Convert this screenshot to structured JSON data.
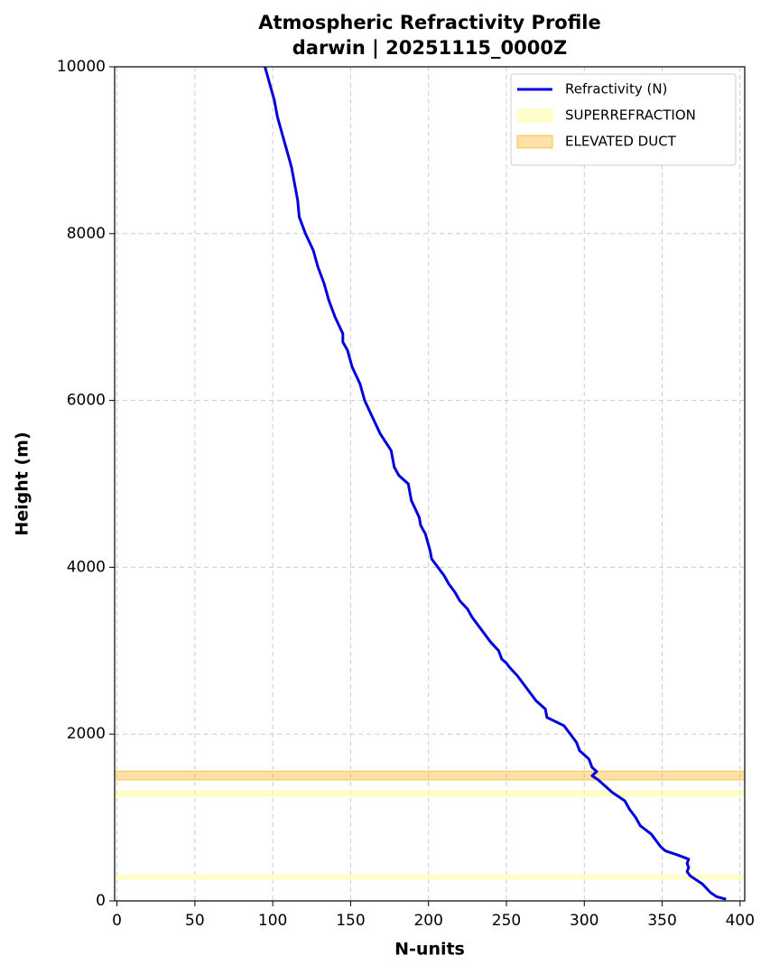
{
  "chart_data": {
    "type": "line",
    "title": "Atmospheric Refractivity Profile",
    "subtitle": "darwin | 20251115_0000Z",
    "x_label": "N-units",
    "y_label": "Height (m)",
    "xlim": [
      -1.5,
      403
    ],
    "ylim": [
      0,
      10000
    ],
    "xticks": [
      0,
      50,
      100,
      150,
      200,
      250,
      300,
      350,
      400
    ],
    "yticks": [
      0,
      2000,
      4000,
      6000,
      8000,
      10000
    ],
    "grid": true,
    "legend": "upper right",
    "series": [
      {
        "name": "Refractivity (N)",
        "color": "#0000dd",
        "x": [
          391,
          385,
          381,
          376,
          372,
          368,
          366,
          367,
          366,
          367,
          360,
          352,
          349,
          347,
          343,
          336,
          333,
          329,
          326,
          318,
          312,
          309,
          305,
          308,
          305,
          303,
          297,
          295,
          291,
          287,
          276,
          275,
          269,
          265,
          261,
          257,
          252,
          250,
          247,
          245,
          240,
          236,
          232,
          228,
          225,
          220,
          217,
          213,
          210,
          206,
          202,
          201,
          198,
          195,
          194,
          189,
          187,
          181,
          178,
          177,
          176,
          169,
          164,
          159,
          156,
          151,
          148,
          145,
          145,
          140,
          136,
          133,
          129,
          126,
          121,
          117,
          116,
          114,
          112,
          109,
          106,
          103,
          101,
          98,
          95
        ],
        "y": [
          20,
          50,
          100,
          200,
          250,
          300,
          350,
          400,
          450,
          500,
          550,
          600,
          650,
          700,
          800,
          900,
          1000,
          1100,
          1200,
          1300,
          1400,
          1450,
          1500,
          1550,
          1600,
          1700,
          1800,
          1900,
          2000,
          2100,
          2200,
          2300,
          2400,
          2500,
          2600,
          2700,
          2800,
          2850,
          2900,
          3000,
          3100,
          3200,
          3300,
          3400,
          3500,
          3600,
          3700,
          3800,
          3900,
          4000,
          4100,
          4200,
          4400,
          4500,
          4600,
          4800,
          5000,
          5100,
          5200,
          5300,
          5400,
          5600,
          5800,
          6000,
          6200,
          6400,
          6600,
          6700,
          6800,
          7000,
          7200,
          7400,
          7600,
          7800,
          8000,
          8200,
          8400,
          8600,
          8800,
          9000,
          9200,
          9400,
          9600,
          9800,
          10000
        ]
      }
    ],
    "bands": [
      {
        "name": "SUPERREFRACTION",
        "color": "#ffff99",
        "opacity": 0.5,
        "ranges": [
          [
            260,
            310
          ],
          [
            1255,
            1320
          ]
        ]
      },
      {
        "name": "ELEVATED DUCT",
        "color": "#ffa500",
        "opacity": 0.35,
        "ranges": [
          [
            1450,
            1555
          ]
        ]
      }
    ]
  }
}
